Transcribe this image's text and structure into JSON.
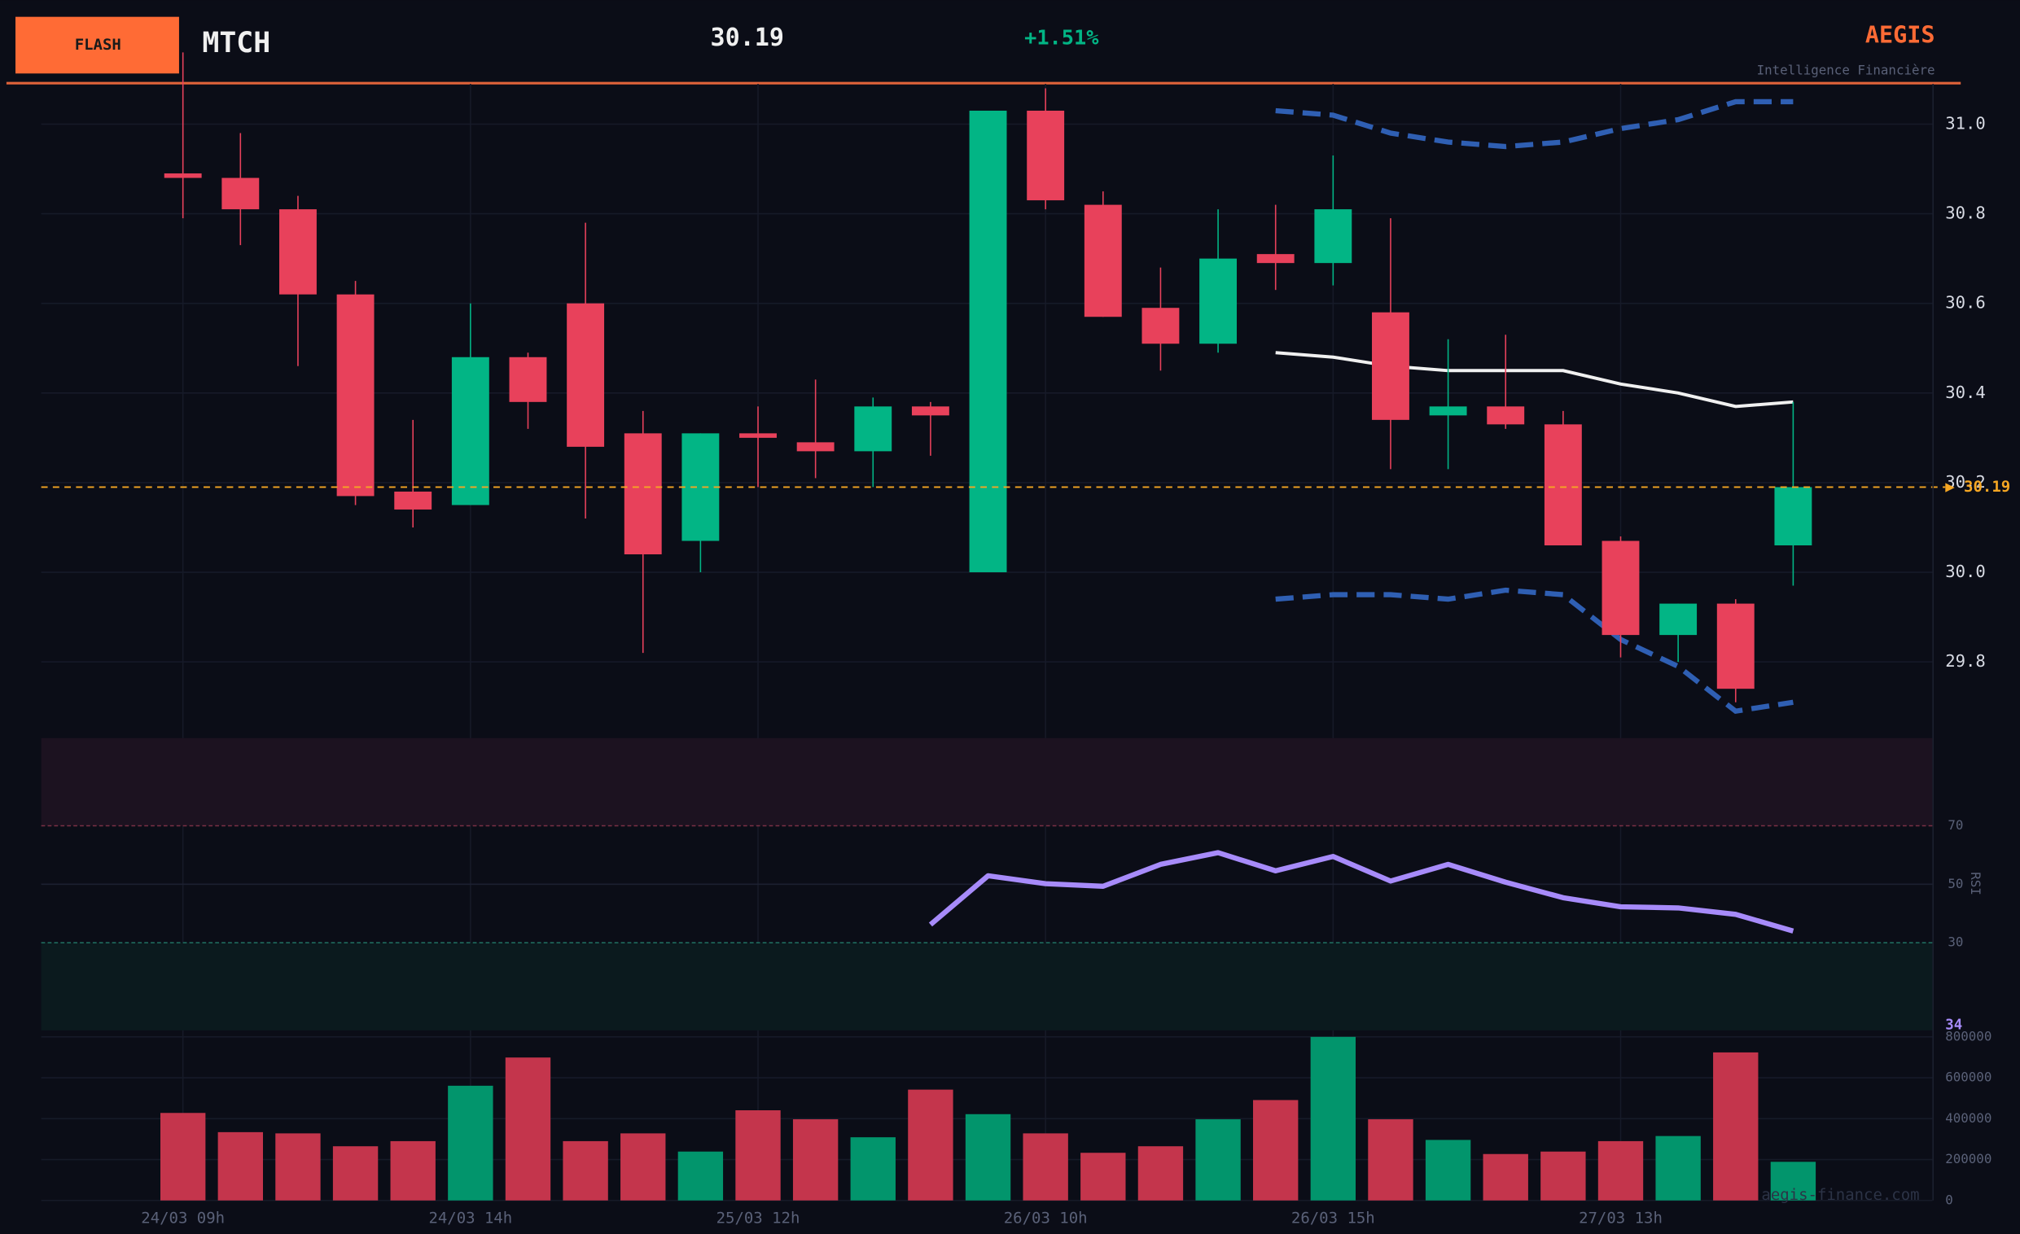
{
  "header": {
    "badge": "FLASH",
    "symbol": "MTCH",
    "price": "30.19",
    "change": "+1.51%",
    "brand": "AEGIS",
    "tagline": "Intelligence Financière",
    "watermark": "aegis-finance.com"
  },
  "chart_data": [
    {
      "type": "candlestick",
      "categories": [
        "24/03 09h",
        null,
        null,
        null,
        null,
        "24/03 14h",
        null,
        null,
        null,
        null,
        "25/03 12h",
        null,
        null,
        null,
        null,
        "26/03 10h",
        null,
        null,
        null,
        null,
        "26/03 15h",
        null,
        null,
        null,
        null,
        "27/03 13h",
        null,
        null,
        null
      ],
      "open": [
        30.89,
        30.88,
        30.81,
        30.62,
        30.18,
        30.15,
        30.48,
        30.6,
        30.31,
        30.07,
        30.31,
        30.29,
        30.27,
        30.37,
        30.0,
        31.03,
        30.82,
        30.59,
        30.51,
        30.71,
        30.69,
        30.58,
        30.35,
        30.37,
        30.33,
        30.07,
        29.86,
        29.93,
        30.06
      ],
      "high": [
        31.16,
        30.98,
        30.84,
        30.65,
        30.34,
        30.6,
        30.49,
        30.78,
        30.36,
        30.31,
        30.37,
        30.43,
        30.39,
        30.38,
        31.03,
        31.08,
        30.85,
        30.68,
        30.81,
        30.82,
        30.93,
        30.79,
        30.52,
        30.53,
        30.36,
        30.08,
        29.93,
        29.94,
        30.38
      ],
      "low": [
        30.79,
        30.73,
        30.46,
        30.15,
        30.1,
        30.15,
        30.32,
        30.12,
        29.82,
        30.0,
        30.19,
        30.21,
        30.19,
        30.26,
        30.0,
        30.81,
        30.57,
        30.45,
        30.49,
        30.63,
        30.64,
        30.23,
        30.23,
        30.32,
        30.06,
        29.81,
        29.8,
        29.71,
        29.97
      ],
      "close": [
        30.88,
        30.81,
        30.62,
        30.17,
        30.14,
        30.48,
        30.38,
        30.28,
        30.04,
        30.31,
        30.3,
        30.27,
        30.37,
        30.35,
        31.03,
        30.83,
        30.57,
        30.51,
        30.7,
        30.69,
        30.81,
        30.34,
        30.37,
        30.33,
        30.06,
        29.86,
        29.93,
        29.74,
        30.19
      ],
      "upper": [
        null,
        null,
        null,
        null,
        null,
        null,
        null,
        null,
        null,
        null,
        null,
        null,
        null,
        null,
        null,
        null,
        null,
        null,
        null,
        31.03,
        31.02,
        30.98,
        30.96,
        30.95,
        30.96,
        30.99,
        31.01,
        31.05,
        31.05
      ],
      "middle": [
        null,
        null,
        null,
        null,
        null,
        null,
        null,
        null,
        null,
        null,
        null,
        null,
        null,
        null,
        null,
        null,
        null,
        null,
        null,
        30.49,
        30.48,
        30.46,
        30.45,
        30.45,
        30.45,
        30.42,
        30.4,
        30.37,
        30.38
      ],
      "lower": [
        null,
        null,
        null,
        null,
        null,
        null,
        null,
        null,
        null,
        null,
        null,
        null,
        null,
        null,
        null,
        null,
        null,
        null,
        null,
        29.94,
        29.95,
        29.95,
        29.94,
        29.96,
        29.95,
        29.85,
        29.79,
        29.69,
        29.71
      ],
      "colors": {
        "up": "#02b585",
        "down": "#e8415b",
        "upper": "#2f5fb3",
        "middle": "#f0f0f0",
        "lower": "#2f5fb3",
        "last": "#f5a623"
      },
      "last_price": {
        "value": 30.19,
        "label": "▶ 30.19"
      },
      "ylim": [
        29.63,
        31.09
      ],
      "yticks": [
        29.8,
        {
          "value": 30.0,
          "label": "30.0"
        },
        30.2,
        30.4,
        30.6,
        30.8,
        {
          "value": 31.0,
          "label": "31.0"
        }
      ],
      "grid": true
    },
    {
      "type": "line",
      "y_label": "RSI",
      "color": "#a78bfa",
      "values": [
        null,
        null,
        null,
        null,
        null,
        null,
        null,
        null,
        null,
        null,
        null,
        null,
        null,
        36.2,
        52.9,
        50.2,
        49.3,
        56.8,
        60.8,
        54.6,
        59.5,
        51.1,
        56.8,
        50.7,
        45.4,
        42.3,
        41.9,
        39.7,
        34
      ],
      "ylim": [
        0,
        100
      ],
      "yticks": [
        30,
        50,
        70
      ],
      "zone_colors": [
        "#1c1220",
        "#0b1a1e"
      ]
    },
    {
      "type": "bar",
      "colors": {
        "up": "#02956c",
        "down": "#c4354c"
      },
      "values": [
        428000,
        334000,
        328000,
        265000,
        290000,
        561000,
        699000,
        290000,
        328000,
        239000,
        441000,
        397000,
        309000,
        542000,
        422000,
        328000,
        233000,
        265000,
        397000,
        491000,
        800000,
        397000,
        296000,
        227000,
        239000,
        290000,
        315000,
        724000,
        189000
      ],
      "ylim": [
        0,
        800000
      ],
      "yticks": [
        0,
        200000,
        400000,
        600000,
        800000
      ],
      "grid": true
    }
  ]
}
